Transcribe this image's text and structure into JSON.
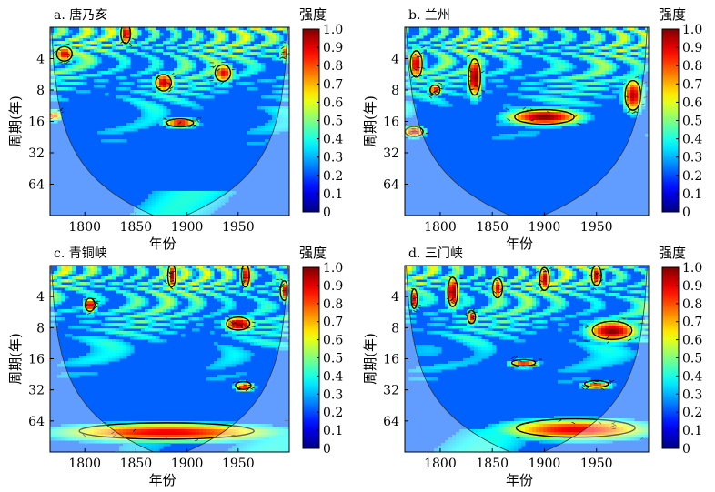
{
  "chart_data": [
    {
      "type": "heatmap",
      "panel_title": "a. 唐乃亥",
      "xlabel": "年份",
      "ylabel": "周期(年)",
      "x_ticks": [
        1800,
        1850,
        1900,
        1950
      ],
      "x_range": [
        1766,
        2000
      ],
      "y_ticks": [
        4,
        8,
        16,
        32,
        64
      ],
      "y_range_log2": [
        1.0,
        7.0
      ],
      "colorbar_title": "强度",
      "colorbar_ticks": [
        "1.0",
        "0.9",
        "0.8",
        "0.7",
        "0.6",
        "0.5",
        "0.4",
        "0.3",
        "0.2",
        "0.1",
        "0"
      ],
      "seed": 3,
      "hot": [
        {
          "x": 1780,
          "p": 3.6,
          "v": 0.9,
          "sx": 8,
          "sy": 0.22
        },
        {
          "x": 1840,
          "p": 2.3,
          "v": 0.95,
          "sx": 5,
          "sy": 0.3
        },
        {
          "x": 1877,
          "p": 6.8,
          "v": 0.95,
          "sx": 8,
          "sy": 0.25
        },
        {
          "x": 1935,
          "p": 5.5,
          "v": 0.9,
          "sx": 8,
          "sy": 0.25
        },
        {
          "x": 1893,
          "p": 16.5,
          "v": 0.9,
          "sx": 14,
          "sy": 0.12
        },
        {
          "x": 1770,
          "p": 14,
          "v": 0.8,
          "sx": 6,
          "sy": 0.15
        },
        {
          "x": 1995,
          "p": 3.5,
          "v": 0.8,
          "sx": 4,
          "sy": 0.25
        }
      ]
    },
    {
      "type": "heatmap",
      "panel_title": "b. 兰州",
      "xlabel": "年份",
      "ylabel": "周期(年)",
      "x_ticks": [
        1800,
        1850,
        1900,
        1950
      ],
      "x_range": [
        1766,
        2000
      ],
      "y_ticks": [
        4,
        8,
        16,
        32,
        64
      ],
      "y_range_log2": [
        1.0,
        7.0
      ],
      "colorbar_title": "强度",
      "colorbar_ticks": [
        "1.0",
        "0.9",
        "0.8",
        "0.7",
        "0.6",
        "0.5",
        "0.4",
        "0.3",
        "0.2",
        "0.1",
        "0"
      ],
      "seed": 11,
      "hot": [
        {
          "x": 1777,
          "p": 4.5,
          "v": 0.95,
          "sx": 6,
          "sy": 0.4
        },
        {
          "x": 1833,
          "p": 6.0,
          "v": 1.0,
          "sx": 6,
          "sy": 0.55
        },
        {
          "x": 1795,
          "p": 8.0,
          "v": 0.9,
          "sx": 5,
          "sy": 0.15
        },
        {
          "x": 1900,
          "p": 14.5,
          "v": 1.0,
          "sx": 30,
          "sy": 0.22
        },
        {
          "x": 1985,
          "p": 9.0,
          "v": 0.95,
          "sx": 8,
          "sy": 0.45
        },
        {
          "x": 1775,
          "p": 20,
          "v": 0.9,
          "sx": 9,
          "sy": 0.15
        }
      ]
    },
    {
      "type": "heatmap",
      "panel_title": "c. 青铜峡",
      "xlabel": "年份",
      "ylabel": "周期(年)",
      "x_ticks": [
        1800,
        1850,
        1900,
        1950
      ],
      "x_range": [
        1766,
        2000
      ],
      "y_ticks": [
        4,
        8,
        16,
        32,
        64
      ],
      "y_range_log2": [
        1.0,
        7.0
      ],
      "colorbar_title": "强度",
      "colorbar_ticks": [
        "1.0",
        "0.9",
        "0.8",
        "0.7",
        "0.6",
        "0.5",
        "0.4",
        "0.3",
        "0.2",
        "0.1",
        "0"
      ],
      "seed": 23,
      "hot": [
        {
          "x": 1805,
          "p": 4.8,
          "v": 0.95,
          "sx": 5,
          "sy": 0.2
        },
        {
          "x": 1950,
          "p": 7.3,
          "v": 1.0,
          "sx": 12,
          "sy": 0.2
        },
        {
          "x": 1885,
          "p": 2.5,
          "v": 0.95,
          "sx": 4,
          "sy": 0.35
        },
        {
          "x": 1957,
          "p": 2.5,
          "v": 0.95,
          "sx": 4,
          "sy": 0.35
        },
        {
          "x": 1995,
          "p": 3.5,
          "v": 0.9,
          "sx": 4,
          "sy": 0.3
        },
        {
          "x": 1955,
          "p": 29,
          "v": 0.85,
          "sx": 8,
          "sy": 0.12
        },
        {
          "x": 1880,
          "p": 80,
          "v": 0.9,
          "sx": 90,
          "sy": 0.25
        }
      ]
    },
    {
      "type": "heatmap",
      "panel_title": "d. 三门峡",
      "xlabel": "年份",
      "ylabel": "周期(年)",
      "x_ticks": [
        1800,
        1850,
        1900,
        1950
      ],
      "x_range": [
        1766,
        2000
      ],
      "y_ticks": [
        4,
        8,
        16,
        32,
        64
      ],
      "y_range_log2": [
        1.0,
        7.0
      ],
      "colorbar_title": "强度",
      "colorbar_ticks": [
        "1.0",
        "0.9",
        "0.8",
        "0.7",
        "0.6",
        "0.5",
        "0.4",
        "0.3",
        "0.2",
        "0.1",
        "0"
      ],
      "seed": 37,
      "hot": [
        {
          "x": 1775,
          "p": 4.2,
          "v": 0.9,
          "sx": 3,
          "sy": 0.3
        },
        {
          "x": 1812,
          "p": 3.6,
          "v": 1.0,
          "sx": 5,
          "sy": 0.45
        },
        {
          "x": 1830,
          "p": 6.3,
          "v": 0.9,
          "sx": 4,
          "sy": 0.2
        },
        {
          "x": 1855,
          "p": 3.3,
          "v": 0.9,
          "sx": 5,
          "sy": 0.3
        },
        {
          "x": 1900,
          "p": 2.7,
          "v": 0.95,
          "sx": 5,
          "sy": 0.35
        },
        {
          "x": 1950,
          "p": 2.5,
          "v": 0.95,
          "sx": 5,
          "sy": 0.3
        },
        {
          "x": 1965,
          "p": 8.5,
          "v": 1.0,
          "sx": 20,
          "sy": 0.28
        },
        {
          "x": 1880,
          "p": 17.5,
          "v": 0.9,
          "sx": 12,
          "sy": 0.1
        },
        {
          "x": 1950,
          "p": 28,
          "v": 0.85,
          "sx": 12,
          "sy": 0.1
        },
        {
          "x": 1930,
          "p": 75,
          "v": 0.9,
          "sx": 60,
          "sy": 0.28
        }
      ]
    }
  ]
}
